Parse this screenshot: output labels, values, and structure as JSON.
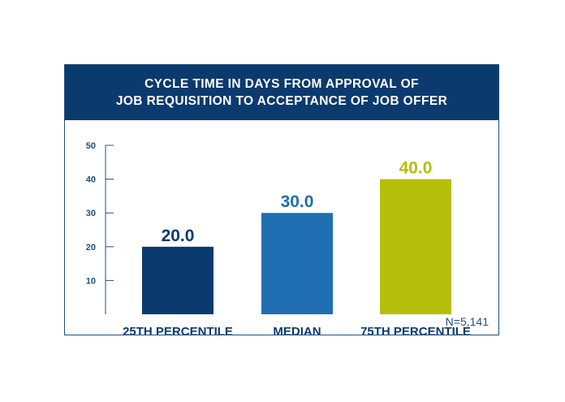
{
  "header": {
    "title_line1": "CYCLE TIME IN DAYS FROM APPROVAL OF",
    "title_line2": "JOB REQUISITION TO ACCEPTANCE OF JOB OFFER"
  },
  "note": "N=5,141",
  "colors": {
    "header_bg": "#0b3a6e",
    "axis": "#1f4f80",
    "bar_25th": "#0b3a6e",
    "bar_median": "#1f6fb2",
    "bar_75th": "#b5be0a"
  },
  "chart_data": {
    "type": "bar",
    "title": "CYCLE TIME IN DAYS FROM APPROVAL OF JOB REQUISITION TO ACCEPTANCE OF JOB OFFER",
    "categories": [
      "25TH PERCENTILE",
      "MEDIAN",
      "75TH PERCENTILE"
    ],
    "values": [
      20,
      30,
      40
    ],
    "value_labels": [
      "20.0",
      "30.0",
      "40.0"
    ],
    "ylim": [
      0,
      50
    ],
    "yticks": [
      10,
      20,
      30,
      40,
      50
    ],
    "grid": false
  }
}
